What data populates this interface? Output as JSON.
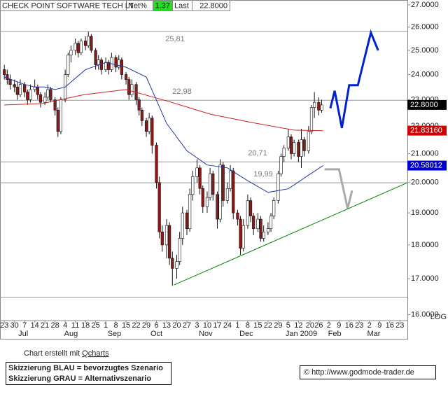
{
  "chart_data": {
    "type": "candlestick",
    "header": {
      "title": "CHECK POINT SOFTWARE TECH LT",
      "net_label": "Net%",
      "net": "1.37",
      "last_label": "Last",
      "last": "22.8000"
    },
    "log_scale": true,
    "ylim": [
      15.84,
      27.22
    ],
    "yticks": [
      {
        "value": 27,
        "label": "27.0000"
      },
      {
        "value": 26,
        "label": "26.0000"
      },
      {
        "value": 25,
        "label": "25.0000"
      },
      {
        "value": 24,
        "label": "24.0000"
      },
      {
        "value": 23,
        "label": "23.0000"
      },
      {
        "value": 22,
        "label": "22.0000"
      },
      {
        "value": 21,
        "label": "21.0000"
      },
      {
        "value": 20,
        "label": "20.0000"
      },
      {
        "value": 19,
        "label": "19.0000"
      },
      {
        "value": 18,
        "label": "18.0000"
      },
      {
        "value": 17,
        "label": "17.0000"
      },
      {
        "value": 16,
        "label": "16.0000"
      }
    ],
    "scale_label": "LOG",
    "xlim": [
      -3,
      278.2
    ],
    "xticks": [
      {
        "value": 0,
        "label": "23"
      },
      {
        "value": 7,
        "label": "30"
      },
      {
        "value": 14,
        "label": "7"
      },
      {
        "value": 21,
        "label": "14"
      },
      {
        "value": 28,
        "label": "21"
      },
      {
        "value": 35,
        "label": "28"
      },
      {
        "value": 42,
        "label": "4"
      },
      {
        "value": 49,
        "label": "11"
      },
      {
        "value": 56,
        "label": "18"
      },
      {
        "value": 63,
        "label": "25"
      },
      {
        "value": 70,
        "label": "1"
      },
      {
        "value": 77,
        "label": "8"
      },
      {
        "value": 84,
        "label": "15"
      },
      {
        "value": 91,
        "label": "22"
      },
      {
        "value": 98,
        "label": "29"
      },
      {
        "value": 105,
        "label": "6"
      },
      {
        "value": 112,
        "label": "13"
      },
      {
        "value": 119,
        "label": "20"
      },
      {
        "value": 126,
        "label": "27"
      },
      {
        "value": 133,
        "label": "3"
      },
      {
        "value": 140,
        "label": "10"
      },
      {
        "value": 147,
        "label": "17"
      },
      {
        "value": 154,
        "label": "24"
      },
      {
        "value": 161,
        "label": "1"
      },
      {
        "value": 168,
        "label": "8"
      },
      {
        "value": 175,
        "label": "15"
      },
      {
        "value": 182,
        "label": "22"
      },
      {
        "value": 189,
        "label": "29"
      },
      {
        "value": 196,
        "label": "5"
      },
      {
        "value": 203,
        "label": "12"
      },
      {
        "value": 211,
        "label": "20"
      },
      {
        "value": 217,
        "label": "26"
      },
      {
        "value": 224,
        "label": "2"
      },
      {
        "value": 231,
        "label": "9"
      },
      {
        "value": 238,
        "label": "16"
      },
      {
        "value": 245,
        "label": "23"
      },
      {
        "value": 252,
        "label": "2"
      },
      {
        "value": 259,
        "label": "9"
      },
      {
        "value": 266,
        "label": "16"
      },
      {
        "value": 273,
        "label": "23"
      }
    ],
    "months": [
      {
        "value": 13,
        "label": "Jul"
      },
      {
        "value": 46,
        "label": "Aug"
      },
      {
        "value": 76,
        "label": "Sep"
      },
      {
        "value": 105,
        "label": "Oct"
      },
      {
        "value": 139,
        "label": "Nov"
      },
      {
        "value": 167,
        "label": "Dec"
      },
      {
        "value": 205,
        "label": "Jan 2009"
      },
      {
        "value": 228,
        "label": "Feb"
      },
      {
        "value": 255,
        "label": "Mar"
      }
    ],
    "x": [
      0,
      2,
      4,
      7,
      9,
      11,
      14,
      16,
      18,
      21,
      23,
      25,
      28,
      30,
      32,
      35,
      37,
      39,
      42,
      44,
      46,
      49,
      51,
      53,
      56,
      58,
      60,
      63,
      65,
      67,
      70,
      72,
      74,
      77,
      79,
      81,
      84,
      86,
      88,
      91,
      93,
      95,
      98,
      100,
      102,
      105,
      107,
      109,
      112,
      114,
      116,
      119,
      121,
      123,
      126,
      128,
      130,
      133,
      135,
      137,
      140,
      142,
      144,
      147,
      149,
      151,
      154,
      156,
      158,
      161,
      163,
      165,
      168,
      170,
      172,
      175,
      177,
      179,
      182,
      184,
      186,
      189,
      191,
      193,
      196,
      198,
      200,
      203,
      205,
      207,
      210,
      212,
      214,
      217,
      219
    ],
    "ohlc": [
      [
        24.2,
        24.4,
        23.8,
        24.0
      ],
      [
        24.0,
        24.2,
        23.6,
        23.8
      ],
      [
        23.8,
        24.0,
        23.4,
        23.6
      ],
      [
        23.6,
        23.8,
        23.3,
        23.5
      ],
      [
        23.5,
        23.7,
        23.0,
        23.2
      ],
      [
        23.2,
        23.8,
        23.1,
        23.6
      ],
      [
        23.6,
        23.7,
        23.1,
        23.3
      ],
      [
        23.3,
        23.4,
        22.8,
        23.0
      ],
      [
        23.0,
        23.6,
        22.9,
        23.4
      ],
      [
        23.4,
        23.8,
        23.3,
        23.5
      ],
      [
        23.5,
        23.6,
        23.0,
        23.2
      ],
      [
        23.2,
        23.3,
        22.7,
        22.9
      ],
      [
        22.9,
        23.3,
        22.8,
        23.1
      ],
      [
        23.1,
        23.6,
        23.0,
        23.4
      ],
      [
        23.4,
        23.5,
        22.9,
        23.0
      ],
      [
        23.0,
        23.1,
        22.4,
        22.6
      ],
      [
        22.6,
        22.7,
        21.6,
        21.8
      ],
      [
        21.8,
        23.1,
        21.7,
        23.0
      ],
      [
        23.0,
        24.2,
        22.9,
        24.0
      ],
      [
        24.0,
        24.9,
        23.9,
        24.8
      ],
      [
        24.8,
        25.2,
        24.5,
        25.0
      ],
      [
        25.0,
        25.5,
        24.8,
        25.3
      ],
      [
        25.3,
        25.4,
        24.7,
        24.9
      ],
      [
        24.9,
        25.5,
        24.8,
        25.4
      ],
      [
        25.4,
        25.6,
        25.0,
        25.2
      ],
      [
        25.2,
        25.8,
        25.1,
        25.6
      ],
      [
        25.6,
        25.7,
        24.9,
        25.0
      ],
      [
        25.0,
        25.1,
        24.2,
        24.4
      ],
      [
        24.4,
        24.8,
        24.2,
        24.6
      ],
      [
        24.6,
        24.7,
        24.0,
        24.2
      ],
      [
        24.2,
        24.7,
        24.1,
        24.5
      ],
      [
        24.5,
        24.6,
        24.0,
        24.2
      ],
      [
        24.2,
        24.9,
        24.1,
        24.7
      ],
      [
        24.7,
        24.8,
        24.1,
        24.3
      ],
      [
        24.3,
        24.8,
        24.2,
        24.6
      ],
      [
        24.6,
        24.7,
        23.8,
        24.0
      ],
      [
        24.0,
        24.1,
        23.6,
        23.8
      ],
      [
        23.8,
        23.9,
        23.0,
        23.2
      ],
      [
        23.2,
        23.8,
        23.1,
        23.6
      ],
      [
        23.6,
        23.7,
        22.8,
        23.0
      ],
      [
        23.0,
        23.1,
        22.4,
        22.6
      ],
      [
        22.6,
        22.7,
        22.0,
        22.2
      ],
      [
        22.2,
        22.3,
        21.6,
        21.8
      ],
      [
        21.8,
        22.5,
        21.7,
        22.3
      ],
      [
        22.3,
        22.4,
        21.0,
        21.3
      ],
      [
        21.3,
        21.4,
        19.8,
        20.0
      ],
      [
        20.0,
        20.2,
        18.2,
        18.4
      ],
      [
        18.4,
        18.6,
        17.8,
        18.0
      ],
      [
        18.0,
        18.8,
        17.6,
        18.6
      ],
      [
        18.6,
        18.7,
        17.4,
        17.6
      ],
      [
        17.6,
        17.8,
        16.8,
        17.3
      ],
      [
        17.3,
        17.7,
        17.0,
        17.5
      ],
      [
        17.5,
        18.4,
        17.4,
        18.2
      ],
      [
        18.2,
        19.2,
        18.0,
        19.0
      ],
      [
        19.0,
        19.1,
        18.3,
        18.5
      ],
      [
        18.5,
        19.8,
        18.4,
        19.6
      ],
      [
        19.6,
        20.4,
        19.4,
        20.2
      ],
      [
        20.2,
        20.8,
        20.0,
        20.5
      ],
      [
        20.5,
        20.6,
        19.6,
        19.8
      ],
      [
        19.8,
        19.9,
        19.0,
        19.2
      ],
      [
        19.2,
        19.7,
        19.0,
        19.5
      ],
      [
        19.5,
        20.5,
        19.4,
        20.3
      ],
      [
        20.3,
        20.4,
        19.4,
        19.6
      ],
      [
        19.6,
        19.7,
        18.5,
        18.8
      ],
      [
        18.8,
        20.8,
        18.7,
        20.6
      ],
      [
        20.6,
        20.7,
        19.2,
        19.4
      ],
      [
        19.4,
        20.0,
        19.3,
        19.8
      ],
      [
        19.8,
        20.6,
        19.7,
        20.4
      ],
      [
        20.4,
        20.5,
        18.8,
        19.0
      ],
      [
        19.0,
        19.1,
        18.6,
        18.8
      ],
      [
        18.8,
        18.9,
        17.7,
        17.9
      ],
      [
        17.9,
        18.8,
        17.8,
        18.6
      ],
      [
        18.6,
        19.6,
        18.5,
        19.4
      ],
      [
        19.4,
        19.5,
        18.7,
        18.9
      ],
      [
        18.9,
        19.0,
        18.3,
        18.5
      ],
      [
        18.5,
        19.0,
        18.4,
        18.8
      ],
      [
        18.8,
        18.9,
        18.1,
        18.2
      ],
      [
        18.2,
        18.6,
        18.1,
        18.4
      ],
      [
        18.4,
        18.7,
        18.3,
        18.5
      ],
      [
        18.5,
        19.0,
        18.4,
        18.9
      ],
      [
        18.9,
        19.5,
        18.8,
        19.4
      ],
      [
        19.4,
        20.4,
        19.3,
        20.3
      ],
      [
        20.3,
        21.0,
        20.2,
        20.9
      ],
      [
        20.9,
        21.3,
        20.7,
        21.2
      ],
      [
        21.2,
        21.9,
        21.1,
        21.6
      ],
      [
        21.6,
        21.7,
        20.8,
        21.0
      ],
      [
        21.0,
        21.5,
        20.9,
        21.4
      ],
      [
        21.4,
        21.5,
        20.7,
        20.9
      ],
      [
        20.9,
        21.9,
        20.5,
        21.5
      ],
      [
        21.5,
        21.6,
        20.9,
        21.1
      ],
      [
        21.1,
        22.0,
        21.0,
        21.8
      ],
      [
        21.8,
        22.8,
        21.7,
        22.7
      ],
      [
        22.7,
        23.3,
        22.3,
        22.9
      ],
      [
        22.9,
        23.1,
        22.4,
        22.6
      ],
      [
        22.6,
        23.0,
        22.5,
        22.8
      ]
    ],
    "up_color": "#ffffff",
    "down_color": "#8b1a1a",
    "lines": [
      {
        "color": "#2233aa",
        "width": 1,
        "x": [
          0,
          14,
          21,
          28,
          35,
          42,
          56,
          70,
          84,
          98,
          112,
          126,
          140,
          154,
          168,
          182,
          196,
          210,
          220
        ],
        "values": [
          23.9,
          23.6,
          23.5,
          23.5,
          23.4,
          23.5,
          24.2,
          24.5,
          24.3,
          23.9,
          22.1,
          21.1,
          20.6,
          20.5,
          20.06,
          19.67,
          19.79,
          20.25,
          20.58
        ]
      },
      {
        "color": "#cc2222",
        "width": 1,
        "x": [
          0,
          26,
          55,
          84,
          113,
          142,
          171,
          200,
          220
        ],
        "values": [
          22.8,
          22.85,
          23.2,
          23.4,
          22.94,
          22.45,
          22.13,
          21.85,
          21.83
        ]
      },
      {
        "color": "#0022cc",
        "width": 3,
        "x": [
          225,
          228,
          233,
          238,
          244,
          253,
          258
        ],
        "values": [
          22.67,
          23.35,
          21.93,
          23.57,
          23.57,
          25.76,
          25.0
        ]
      },
      {
        "color": "#aaaaaa",
        "width": 3,
        "x": [
          221,
          231,
          237,
          240
        ],
        "values": [
          20.45,
          20.45,
          19.14,
          19.73
        ]
      },
      {
        "color": "#008000",
        "width": 1,
        "x": [
          117,
          278
        ],
        "values": [
          16.82,
          19.99
        ]
      }
    ],
    "levels": [
      25.81,
      22.98,
      20.71,
      19.99,
      16.48
    ],
    "level_labels": [
      "25,81",
      "22,98",
      "20,71",
      "19,99",
      null
    ],
    "price_markers": [
      {
        "value": 22.8,
        "label": "22.8000",
        "color": "#000000"
      },
      {
        "value": 21.8316,
        "label": "21.83160",
        "color": "#cc0000"
      },
      {
        "value": 20.58012,
        "label": "20.58012",
        "color": "#0000cc"
      }
    ],
    "footer": {
      "credit": "Chart erstellt mit ",
      "tool": "Qcharts",
      "legend": [
        "Skizzierung BLAU = bevorzugtes Szenario",
        "Skizzierung GRAU = Alternativszenario"
      ],
      "copyright": "© http://www.godmode-trader.de"
    }
  }
}
